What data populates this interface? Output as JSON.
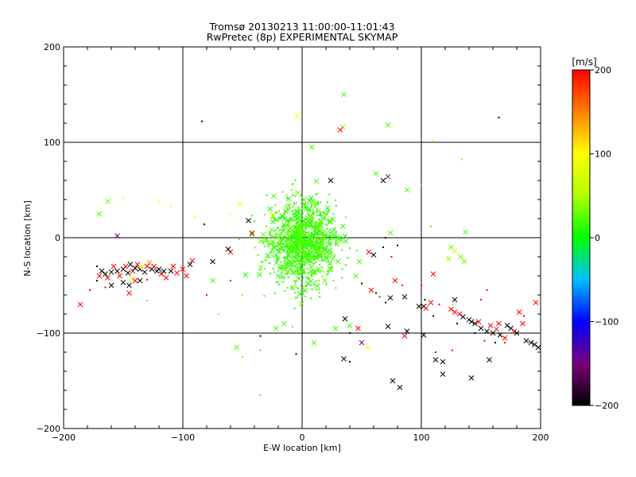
{
  "chart_data": {
    "type": "scatter",
    "title": "Tromsø 20130213 11:00:00-11:01:43",
    "subtitle": "RwPretec (8p) EXPERIMENTAL SKYMAP",
    "xlabel": "E-W location [km]",
    "ylabel": "N-S location [km]",
    "xlim": [
      -200,
      200
    ],
    "ylim": [
      -200,
      200
    ],
    "x_ticks": [
      -200,
      -100,
      0,
      100,
      200
    ],
    "y_ticks": [
      -200,
      -100,
      0,
      100,
      200
    ],
    "x_tick_labels": [
      "−200",
      "−100",
      "0",
      "100",
      "200"
    ],
    "y_tick_labels": [
      "−200",
      "−100",
      "0",
      "100",
      "200"
    ],
    "grid": true,
    "colorbar": {
      "label": "[m/s]",
      "range": [
        -200,
        200
      ],
      "ticks": [
        200,
        100,
        0,
        -100,
        -200
      ],
      "tick_labels": [
        "200",
        "100",
        "0",
        "−100",
        "−200"
      ]
    },
    "markers": "x (cross) for main detections, dot for weak detections; color = line-of-sight velocity in m/s",
    "points": [
      {
        "x": -84,
        "y": 122,
        "v": -200,
        "m": "d"
      },
      {
        "x": 165,
        "y": 126,
        "v": -200,
        "m": "d"
      },
      {
        "x": -4,
        "y": 128,
        "v": 100,
        "m": "x"
      },
      {
        "x": 35,
        "y": 150,
        "v": 20,
        "m": "x"
      },
      {
        "x": 34,
        "y": 116,
        "v": 20,
        "m": "x"
      },
      {
        "x": 32,
        "y": 113,
        "v": 200,
        "m": "x"
      },
      {
        "x": 72,
        "y": 118,
        "v": 20,
        "m": "x"
      },
      {
        "x": 8,
        "y": 95,
        "v": 20,
        "m": "x"
      },
      {
        "x": 110,
        "y": 102,
        "v": 80,
        "m": "d"
      },
      {
        "x": 134,
        "y": 82,
        "v": 40,
        "m": "d"
      },
      {
        "x": 72,
        "y": 64,
        "v": -150,
        "m": "x"
      },
      {
        "x": 68,
        "y": 60,
        "v": -200,
        "m": "x"
      },
      {
        "x": 62,
        "y": 67,
        "v": 20,
        "m": "x"
      },
      {
        "x": 24,
        "y": 60,
        "v": -200,
        "m": "x"
      },
      {
        "x": 88,
        "y": 50,
        "v": 20,
        "m": "x"
      },
      {
        "x": 100,
        "y": 55,
        "v": 20,
        "m": "d"
      },
      {
        "x": -163,
        "y": 38,
        "v": 30,
        "m": "x"
      },
      {
        "x": -170,
        "y": 25,
        "v": 20,
        "m": "x"
      },
      {
        "x": -150,
        "y": 42,
        "v": 80,
        "m": "d"
      },
      {
        "x": -52,
        "y": 35,
        "v": 80,
        "m": "x"
      },
      {
        "x": -45,
        "y": 18,
        "v": -200,
        "m": "x"
      },
      {
        "x": -42,
        "y": 5,
        "v": 200,
        "m": "x"
      },
      {
        "x": -60,
        "y": 25,
        "v": 100,
        "m": "d"
      },
      {
        "x": -120,
        "y": 38,
        "v": 100,
        "m": "d"
      },
      {
        "x": -110,
        "y": 33,
        "v": 100,
        "m": "d"
      },
      {
        "x": -90,
        "y": 22,
        "v": 100,
        "m": "d"
      },
      {
        "x": -82,
        "y": 14,
        "v": -200,
        "m": "d"
      },
      {
        "x": -25,
        "y": 25,
        "v": 100,
        "m": "x"
      },
      {
        "x": -155,
        "y": 2,
        "v": -150,
        "m": "x"
      },
      {
        "x": 70,
        "y": 0,
        "v": -200,
        "m": "d"
      },
      {
        "x": 74,
        "y": 5,
        "v": 20,
        "m": "x"
      },
      {
        "x": 137,
        "y": 6,
        "v": 20,
        "m": "x"
      },
      {
        "x": 108,
        "y": 12,
        "v": 20,
        "m": "d"
      },
      {
        "x": 125,
        "y": -10,
        "v": 30,
        "m": "x"
      },
      {
        "x": 128,
        "y": -14,
        "v": 70,
        "m": "x"
      },
      {
        "x": 123,
        "y": -22,
        "v": 40,
        "m": "x"
      },
      {
        "x": 133,
        "y": -20,
        "v": 30,
        "m": "x"
      },
      {
        "x": 136,
        "y": -25,
        "v": 30,
        "m": "x"
      },
      {
        "x": 56,
        "y": -15,
        "v": 200,
        "m": "x"
      },
      {
        "x": 60,
        "y": -18,
        "v": -200,
        "m": "x"
      },
      {
        "x": 68,
        "y": -10,
        "v": -200,
        "m": "d"
      },
      {
        "x": 80,
        "y": -8,
        "v": -200,
        "m": "d"
      },
      {
        "x": 75,
        "y": -20,
        "v": 200,
        "m": "d"
      },
      {
        "x": 48,
        "y": -25,
        "v": 20,
        "m": "x"
      },
      {
        "x": 45,
        "y": -40,
        "v": 20,
        "m": "x"
      },
      {
        "x": 50,
        "y": -48,
        "v": -200,
        "m": "d"
      },
      {
        "x": 58,
        "y": -55,
        "v": 200,
        "m": "x"
      },
      {
        "x": 62,
        "y": -58,
        "v": -200,
        "m": "d"
      },
      {
        "x": 65,
        "y": -62,
        "v": 200,
        "m": "d"
      },
      {
        "x": 78,
        "y": -45,
        "v": 200,
        "m": "x"
      },
      {
        "x": 84,
        "y": -50,
        "v": 200,
        "m": "d"
      },
      {
        "x": 100,
        "y": -50,
        "v": 200,
        "m": "d"
      },
      {
        "x": 110,
        "y": -38,
        "v": 200,
        "m": "x"
      },
      {
        "x": 86,
        "y": -62,
        "v": -200,
        "m": "x"
      },
      {
        "x": 74,
        "y": -63,
        "v": -200,
        "m": "x"
      },
      {
        "x": 70,
        "y": -68,
        "v": -200,
        "m": "d"
      },
      {
        "x": 98,
        "y": -72,
        "v": -200,
        "m": "x"
      },
      {
        "x": 102,
        "y": -72,
        "v": -200,
        "m": "x"
      },
      {
        "x": 104,
        "y": -74,
        "v": 200,
        "m": "x"
      },
      {
        "x": 108,
        "y": -68,
        "v": 200,
        "m": "x"
      },
      {
        "x": 103,
        "y": -65,
        "v": -200,
        "m": "d"
      },
      {
        "x": 115,
        "y": -70,
        "v": 200,
        "m": "d"
      },
      {
        "x": 128,
        "y": -65,
        "v": -200,
        "m": "x"
      },
      {
        "x": 126,
        "y": -70,
        "v": 60,
        "m": "d"
      },
      {
        "x": 125,
        "y": -75,
        "v": 200,
        "m": "x"
      },
      {
        "x": 128,
        "y": -78,
        "v": 200,
        "m": "x"
      },
      {
        "x": 132,
        "y": -80,
        "v": 200,
        "m": "x"
      },
      {
        "x": 135,
        "y": -83,
        "v": -200,
        "m": "x"
      },
      {
        "x": 140,
        "y": -86,
        "v": -200,
        "m": "x"
      },
      {
        "x": 142,
        "y": -88,
        "v": -200,
        "m": "x"
      },
      {
        "x": 145,
        "y": -90,
        "v": -200,
        "m": "x"
      },
      {
        "x": 148,
        "y": -88,
        "v": 200,
        "m": "x"
      },
      {
        "x": 150,
        "y": -95,
        "v": -200,
        "m": "x"
      },
      {
        "x": 155,
        "y": -98,
        "v": -200,
        "m": "x"
      },
      {
        "x": 158,
        "y": -92,
        "v": 200,
        "m": "x"
      },
      {
        "x": 160,
        "y": -100,
        "v": -200,
        "m": "x"
      },
      {
        "x": 163,
        "y": -96,
        "v": 200,
        "m": "x"
      },
      {
        "x": 165,
        "y": -90,
        "v": 200,
        "m": "x"
      },
      {
        "x": 166,
        "y": -102,
        "v": -200,
        "m": "x"
      },
      {
        "x": 170,
        "y": -105,
        "v": 200,
        "m": "x"
      },
      {
        "x": 172,
        "y": -92,
        "v": -200,
        "m": "x"
      },
      {
        "x": 175,
        "y": -95,
        "v": -200,
        "m": "x"
      },
      {
        "x": 178,
        "y": -98,
        "v": 200,
        "m": "x"
      },
      {
        "x": 180,
        "y": -100,
        "v": -200,
        "m": "x"
      },
      {
        "x": 182,
        "y": -78,
        "v": 200,
        "m": "x"
      },
      {
        "x": 185,
        "y": -90,
        "v": 200,
        "m": "x"
      },
      {
        "x": 186,
        "y": -82,
        "v": 200,
        "m": "d"
      },
      {
        "x": 188,
        "y": -108,
        "v": -200,
        "m": "x"
      },
      {
        "x": 192,
        "y": -110,
        "v": -200,
        "m": "x"
      },
      {
        "x": 195,
        "y": -112,
        "v": -200,
        "m": "x"
      },
      {
        "x": 196,
        "y": -68,
        "v": 200,
        "m": "x"
      },
      {
        "x": 198,
        "y": -115,
        "v": -200,
        "m": "x"
      },
      {
        "x": 170,
        "y": -110,
        "v": 200,
        "m": "d"
      },
      {
        "x": 155,
        "y": -55,
        "v": 200,
        "m": "d"
      },
      {
        "x": 150,
        "y": -65,
        "v": 200,
        "m": "d"
      },
      {
        "x": 130,
        "y": -90,
        "v": -200,
        "m": "d"
      },
      {
        "x": 145,
        "y": -100,
        "v": -200,
        "m": "d"
      },
      {
        "x": 153,
        "y": -108,
        "v": 200,
        "m": "d"
      },
      {
        "x": 162,
        "y": -110,
        "v": -200,
        "m": "d"
      },
      {
        "x": 110,
        "y": -82,
        "v": -200,
        "m": "d"
      },
      {
        "x": 112,
        "y": -120,
        "v": 200,
        "m": "d"
      },
      {
        "x": 126,
        "y": -118,
        "v": 200,
        "m": "d"
      },
      {
        "x": 112,
        "y": -128,
        "v": -200,
        "m": "x"
      },
      {
        "x": 118,
        "y": -130,
        "v": -200,
        "m": "x"
      },
      {
        "x": 118,
        "y": -143,
        "v": -200,
        "m": "x"
      },
      {
        "x": 142,
        "y": -147,
        "v": -200,
        "m": "x"
      },
      {
        "x": 157,
        "y": -128,
        "v": -200,
        "m": "x"
      },
      {
        "x": 102,
        "y": -102,
        "v": -200,
        "m": "x"
      },
      {
        "x": 88,
        "y": -98,
        "v": -200,
        "m": "x"
      },
      {
        "x": 86,
        "y": -103,
        "v": 200,
        "m": "x"
      },
      {
        "x": 72,
        "y": -93,
        "v": -200,
        "m": "x"
      },
      {
        "x": 76,
        "y": -150,
        "v": -200,
        "m": "x"
      },
      {
        "x": 82,
        "y": -157,
        "v": -200,
        "m": "x"
      },
      {
        "x": 47,
        "y": -95,
        "v": 200,
        "m": "x"
      },
      {
        "x": 36,
        "y": -85,
        "v": -200,
        "m": "x"
      },
      {
        "x": 40,
        "y": -100,
        "v": -200,
        "m": "d"
      },
      {
        "x": 50,
        "y": -110,
        "v": -150,
        "m": "x"
      },
      {
        "x": 55,
        "y": -115,
        "v": 100,
        "m": "x"
      },
      {
        "x": 35,
        "y": -127,
        "v": -200,
        "m": "x"
      },
      {
        "x": 40,
        "y": -130,
        "v": -200,
        "m": "d"
      },
      {
        "x": 28,
        "y": -95,
        "v": 20,
        "m": "x"
      },
      {
        "x": 40,
        "y": -92,
        "v": 20,
        "m": "x"
      },
      {
        "x": 10,
        "y": -110,
        "v": 20,
        "m": "x"
      },
      {
        "x": -55,
        "y": -115,
        "v": 20,
        "m": "x"
      },
      {
        "x": -50,
        "y": -125,
        "v": 40,
        "m": "d"
      },
      {
        "x": -35,
        "y": -118,
        "v": 20,
        "m": "d"
      },
      {
        "x": -35,
        "y": -103,
        "v": -200,
        "m": "d"
      },
      {
        "x": -22,
        "y": -95,
        "v": 20,
        "m": "x"
      },
      {
        "x": -15,
        "y": -90,
        "v": 20,
        "m": "x"
      },
      {
        "x": -5,
        "y": -122,
        "v": -200,
        "m": "d"
      },
      {
        "x": -35,
        "y": -165,
        "v": 20,
        "m": "d"
      },
      {
        "x": -60,
        "y": -15,
        "v": 200,
        "m": "x"
      },
      {
        "x": -62,
        "y": -12,
        "v": -200,
        "m": "x"
      },
      {
        "x": -75,
        "y": -25,
        "v": -200,
        "m": "x"
      },
      {
        "x": -75,
        "y": -45,
        "v": 20,
        "m": "x"
      },
      {
        "x": -80,
        "y": -60,
        "v": 200,
        "m": "d"
      },
      {
        "x": -60,
        "y": -45,
        "v": 200,
        "m": "d"
      },
      {
        "x": -50,
        "y": -60,
        "v": 40,
        "m": "d"
      },
      {
        "x": -70,
        "y": -80,
        "v": 40,
        "m": "d"
      },
      {
        "x": -186,
        "y": -70,
        "v": 200,
        "m": "x"
      },
      {
        "x": -178,
        "y": -55,
        "v": 200,
        "m": "d"
      },
      {
        "x": -172,
        "y": -45,
        "v": -200,
        "m": "d"
      },
      {
        "x": -170,
        "y": -40,
        "v": 200,
        "m": "x"
      },
      {
        "x": -168,
        "y": -35,
        "v": -200,
        "m": "x"
      },
      {
        "x": -165,
        "y": -38,
        "v": -200,
        "m": "x"
      },
      {
        "x": -163,
        "y": -42,
        "v": 200,
        "m": "x"
      },
      {
        "x": -160,
        "y": -36,
        "v": -200,
        "m": "x"
      },
      {
        "x": -158,
        "y": -30,
        "v": 200,
        "m": "x"
      },
      {
        "x": -155,
        "y": -35,
        "v": -200,
        "m": "x"
      },
      {
        "x": -153,
        "y": -40,
        "v": 200,
        "m": "x"
      },
      {
        "x": -150,
        "y": -33,
        "v": -200,
        "m": "x"
      },
      {
        "x": -148,
        "y": -30,
        "v": 200,
        "m": "x"
      },
      {
        "x": -146,
        "y": -37,
        "v": -200,
        "m": "x"
      },
      {
        "x": -144,
        "y": -28,
        "v": -200,
        "m": "x"
      },
      {
        "x": -142,
        "y": -35,
        "v": 200,
        "m": "x"
      },
      {
        "x": -140,
        "y": -32,
        "v": -200,
        "m": "x"
      },
      {
        "x": -138,
        "y": -28,
        "v": 200,
        "m": "x"
      },
      {
        "x": -136,
        "y": -33,
        "v": -200,
        "m": "x"
      },
      {
        "x": -134,
        "y": -30,
        "v": 100,
        "m": "x"
      },
      {
        "x": -132,
        "y": -36,
        "v": -200,
        "m": "x"
      },
      {
        "x": -130,
        "y": -30,
        "v": 200,
        "m": "x"
      },
      {
        "x": -128,
        "y": -26,
        "v": 150,
        "m": "x"
      },
      {
        "x": -126,
        "y": -33,
        "v": -200,
        "m": "x"
      },
      {
        "x": -124,
        "y": -30,
        "v": 200,
        "m": "x"
      },
      {
        "x": -122,
        "y": -35,
        "v": -200,
        "m": "x"
      },
      {
        "x": -120,
        "y": -33,
        "v": -200,
        "m": "x"
      },
      {
        "x": -118,
        "y": -38,
        "v": 200,
        "m": "x"
      },
      {
        "x": -116,
        "y": -35,
        "v": -200,
        "m": "x"
      },
      {
        "x": -114,
        "y": -42,
        "v": 200,
        "m": "x"
      },
      {
        "x": -110,
        "y": -35,
        "v": -200,
        "m": "x"
      },
      {
        "x": -108,
        "y": -30,
        "v": 200,
        "m": "x"
      },
      {
        "x": -105,
        "y": -37,
        "v": 200,
        "m": "x"
      },
      {
        "x": -100,
        "y": -33,
        "v": 200,
        "m": "x"
      },
      {
        "x": -97,
        "y": -40,
        "v": 200,
        "m": "x"
      },
      {
        "x": -94,
        "y": -28,
        "v": -200,
        "m": "x"
      },
      {
        "x": -92,
        "y": -24,
        "v": 200,
        "m": "x"
      },
      {
        "x": -160,
        "y": -50,
        "v": -200,
        "m": "x"
      },
      {
        "x": -150,
        "y": -47,
        "v": -200,
        "m": "x"
      },
      {
        "x": -145,
        "y": -50,
        "v": -200,
        "m": "x"
      },
      {
        "x": -143,
        "y": -43,
        "v": 100,
        "m": "x"
      },
      {
        "x": -140,
        "y": -45,
        "v": 200,
        "m": "x"
      },
      {
        "x": -136,
        "y": -45,
        "v": -200,
        "m": "x"
      },
      {
        "x": -145,
        "y": -58,
        "v": 200,
        "m": "x"
      },
      {
        "x": -165,
        "y": -52,
        "v": 200,
        "m": "d"
      },
      {
        "x": -130,
        "y": -44,
        "v": 200,
        "m": "d"
      },
      {
        "x": -172,
        "y": -30,
        "v": -200,
        "m": "d"
      },
      {
        "x": -130,
        "y": -66,
        "v": 30,
        "m": "d"
      },
      {
        "x": -112,
        "y": -28,
        "v": 100,
        "m": "d"
      }
    ],
    "cluster": {
      "description": "dense group of cyan-green dots/crosses near the origin",
      "center": [
        0,
        -5
      ],
      "spread": [
        14,
        22
      ],
      "count": 1100,
      "v_range": [
        5,
        30
      ]
    }
  }
}
